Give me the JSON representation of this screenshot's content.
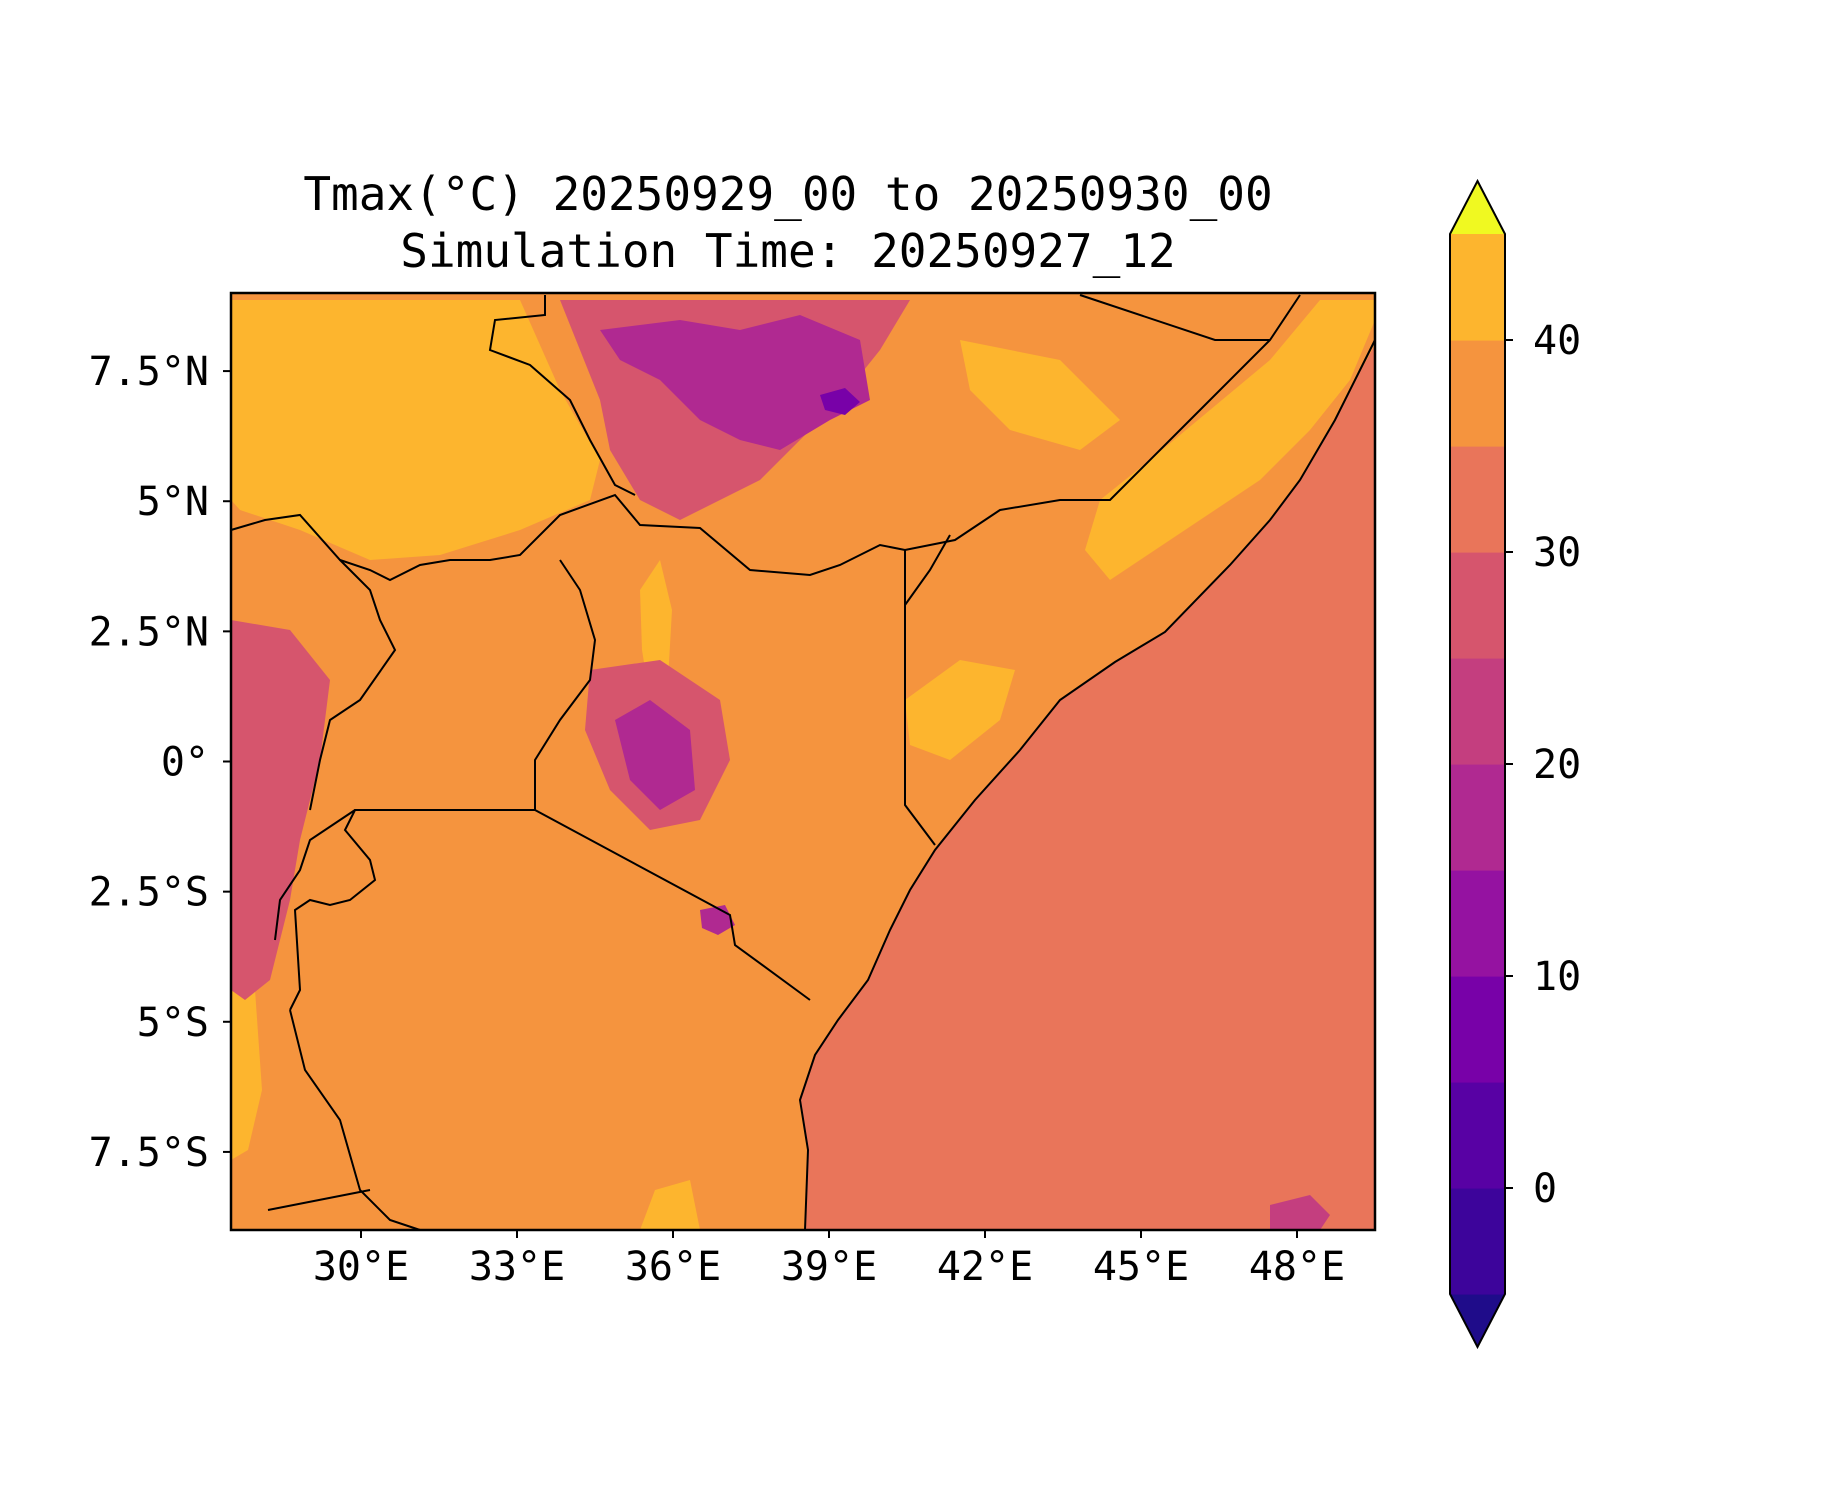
{
  "figure": {
    "title_line1": "Tmax(°C) 20250929_00 to 20250930_00",
    "title_line2": "Simulation Time: 20250927_12"
  },
  "map": {
    "lon_range": [
      27.5,
      49.5
    ],
    "lat_range": [
      -9.0,
      9.0
    ],
    "x_ticks": [
      {
        "lon": 30,
        "label": "30°E"
      },
      {
        "lon": 33,
        "label": "33°E"
      },
      {
        "lon": 36,
        "label": "36°E"
      },
      {
        "lon": 39,
        "label": "39°E"
      },
      {
        "lon": 42,
        "label": "42°E"
      },
      {
        "lon": 45,
        "label": "45°E"
      },
      {
        "lon": 48,
        "label": "48°E"
      }
    ],
    "y_ticks": [
      {
        "lat": 7.5,
        "label": "7.5°N"
      },
      {
        "lat": 5,
        "label": "5°N"
      },
      {
        "lat": 2.5,
        "label": "2.5°N"
      },
      {
        "lat": 0,
        "label": "0°"
      },
      {
        "lat": -2.5,
        "label": "2.5°S"
      },
      {
        "lat": -5,
        "label": "5°S"
      },
      {
        "lat": -7.5,
        "label": "7.5°S"
      }
    ],
    "ocean_color": "#e9755a",
    "land_color": "#f5943e",
    "borders_color": "#000000"
  },
  "colorbar": {
    "levels": [
      -5,
      0,
      5,
      10,
      15,
      20,
      25,
      30,
      35,
      40,
      45
    ],
    "colors": [
      "#1f0c8a",
      "#3d049b",
      "#5801a4",
      "#7801a8",
      "#9512a1",
      "#b02991",
      "#c43e7f",
      "#d6556d",
      "#e9755a",
      "#f5943e",
      "#fdb52e",
      "#f4e12a",
      "#f0f921"
    ],
    "extend": "both",
    "tick_labels": [
      {
        "value": 0,
        "label": "0"
      },
      {
        "value": 10,
        "label": "10"
      },
      {
        "value": 20,
        "label": "20"
      },
      {
        "value": 30,
        "label": "30"
      },
      {
        "value": 40,
        "label": "40"
      }
    ]
  }
}
